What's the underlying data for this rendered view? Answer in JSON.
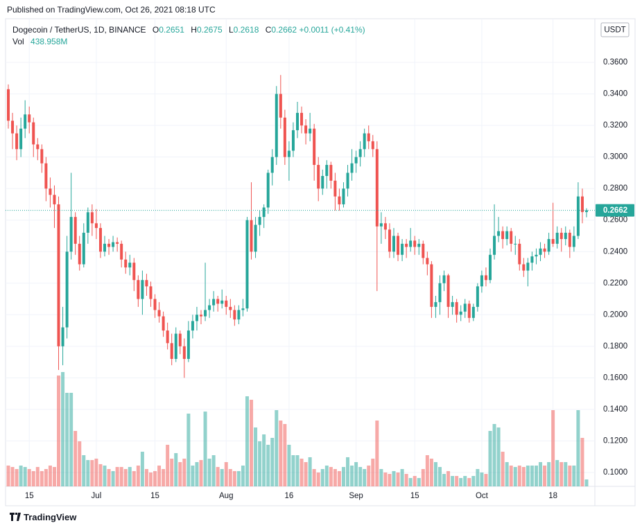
{
  "published": "Published on TradingView.com, Oct 26, 2021 08:18 UTC",
  "brand": "TradingView",
  "chart_data": {
    "type": "candlestick",
    "symbol": "Dogecoin / TetherUS, 1D, BINANCE",
    "legend_keys": [
      "O",
      "H",
      "L",
      "C"
    ],
    "change": {
      "value": 0.0011,
      "label": "+0.0011"
    },
    "change_pct": {
      "value": 0.41,
      "label": "(+0.41%)"
    },
    "volume_key": "Vol",
    "volume_legend": {
      "value": 438.958,
      "label": "438.958M"
    },
    "currency": "USDT",
    "up_color": "#26a69a",
    "down_color": "#ef5350",
    "grid": true,
    "ylim": [
      0.0912,
      0.3877
    ],
    "yticks": [
      {
        "value": 0.1,
        "label": "0.1000"
      },
      {
        "value": 0.12,
        "label": "0.1200"
      },
      {
        "value": 0.14,
        "label": "0.1400"
      },
      {
        "value": 0.16,
        "label": "0.1600"
      },
      {
        "value": 0.18,
        "label": "0.1800"
      },
      {
        "value": 0.2,
        "label": "0.2000"
      },
      {
        "value": 0.22,
        "label": "0.2200"
      },
      {
        "value": 0.24,
        "label": "0.2400"
      },
      {
        "value": 0.26,
        "label": "0.2600"
      },
      {
        "value": 0.28,
        "label": "0.2800"
      },
      {
        "value": 0.3,
        "label": "0.3000"
      },
      {
        "value": 0.32,
        "label": "0.3200"
      },
      {
        "value": 0.34,
        "label": "0.3400"
      },
      {
        "value": 0.36,
        "label": "0.3600"
      }
    ],
    "categories": [
      null,
      null,
      null,
      null,
      null,
      "15",
      null,
      null,
      null,
      null,
      null,
      null,
      null,
      null,
      null,
      null,
      null,
      null,
      null,
      null,
      null,
      "Jul",
      null,
      null,
      null,
      null,
      null,
      null,
      null,
      null,
      null,
      null,
      null,
      null,
      null,
      "15",
      null,
      null,
      null,
      null,
      null,
      null,
      null,
      null,
      null,
      null,
      null,
      null,
      null,
      null,
      null,
      null,
      "Aug",
      null,
      null,
      null,
      null,
      null,
      null,
      null,
      null,
      null,
      null,
      null,
      null,
      null,
      null,
      "16",
      null,
      null,
      null,
      null,
      null,
      null,
      null,
      null,
      null,
      null,
      null,
      null,
      null,
      null,
      null,
      "Sep",
      null,
      null,
      null,
      null,
      null,
      null,
      null,
      null,
      null,
      null,
      null,
      null,
      null,
      "15",
      null,
      null,
      null,
      null,
      null,
      null,
      null,
      null,
      null,
      null,
      null,
      null,
      null,
      null,
      null,
      "Oct",
      null,
      null,
      null,
      null,
      null,
      null,
      null,
      null,
      null,
      null,
      null,
      null,
      null,
      null,
      null,
      null,
      "18",
      null,
      null,
      null,
      null,
      null,
      null,
      null,
      null
    ],
    "candles": [
      [
        0.343,
        0.346,
        0.318,
        0.323
      ],
      [
        0.323,
        0.328,
        0.305,
        0.315
      ],
      [
        0.315,
        0.32,
        0.298,
        0.305
      ],
      [
        0.305,
        0.325,
        0.3,
        0.318
      ],
      [
        0.318,
        0.336,
        0.312,
        0.327
      ],
      [
        0.327,
        0.332,
        0.315,
        0.322
      ],
      [
        0.322,
        0.325,
        0.3,
        0.308
      ],
      [
        0.308,
        0.312,
        0.298,
        0.305
      ],
      [
        0.305,
        0.308,
        0.29,
        0.296
      ],
      [
        0.296,
        0.3,
        0.272,
        0.28
      ],
      [
        0.28,
        0.287,
        0.268,
        0.276
      ],
      [
        0.276,
        0.282,
        0.255,
        0.27
      ],
      [
        0.27,
        0.275,
        0.165,
        0.18
      ],
      [
        0.18,
        0.205,
        0.168,
        0.192
      ],
      [
        0.192,
        0.25,
        0.185,
        0.24
      ],
      [
        0.24,
        0.29,
        0.235,
        0.262
      ],
      [
        0.262,
        0.265,
        0.238,
        0.245
      ],
      [
        0.245,
        0.25,
        0.228,
        0.232
      ],
      [
        0.232,
        0.258,
        0.23,
        0.252
      ],
      [
        0.252,
        0.268,
        0.245,
        0.265
      ],
      [
        0.265,
        0.27,
        0.25,
        0.258
      ],
      [
        0.258,
        0.267,
        0.248,
        0.255
      ],
      [
        0.255,
        0.258,
        0.236,
        0.24
      ],
      [
        0.24,
        0.25,
        0.237,
        0.245
      ],
      [
        0.245,
        0.248,
        0.238,
        0.243
      ],
      [
        0.243,
        0.25,
        0.24,
        0.246
      ],
      [
        0.246,
        0.249,
        0.24,
        0.245
      ],
      [
        0.245,
        0.247,
        0.23,
        0.235
      ],
      [
        0.235,
        0.24,
        0.226,
        0.23
      ],
      [
        0.23,
        0.238,
        0.225,
        0.233
      ],
      [
        0.233,
        0.236,
        0.215,
        0.222
      ],
      [
        0.222,
        0.225,
        0.205,
        0.21
      ],
      [
        0.21,
        0.228,
        0.2,
        0.222
      ],
      [
        0.222,
        0.226,
        0.212,
        0.218
      ],
      [
        0.218,
        0.221,
        0.205,
        0.21
      ],
      [
        0.21,
        0.213,
        0.198,
        0.203
      ],
      [
        0.203,
        0.208,
        0.195,
        0.199
      ],
      [
        0.199,
        0.202,
        0.186,
        0.19
      ],
      [
        0.19,
        0.195,
        0.178,
        0.182
      ],
      [
        0.182,
        0.188,
        0.168,
        0.172
      ],
      [
        0.172,
        0.192,
        0.17,
        0.188
      ],
      [
        0.188,
        0.19,
        0.175,
        0.18
      ],
      [
        0.18,
        0.185,
        0.16,
        0.172
      ],
      [
        0.172,
        0.196,
        0.17,
        0.19
      ],
      [
        0.19,
        0.2,
        0.185,
        0.196
      ],
      [
        0.196,
        0.205,
        0.19,
        0.2
      ],
      [
        0.2,
        0.203,
        0.194,
        0.199
      ],
      [
        0.199,
        0.233,
        0.196,
        0.203
      ],
      [
        0.203,
        0.21,
        0.198,
        0.206
      ],
      [
        0.206,
        0.215,
        0.202,
        0.21
      ],
      [
        0.21,
        0.212,
        0.202,
        0.207
      ],
      [
        0.207,
        0.216,
        0.204,
        0.209
      ],
      [
        0.209,
        0.212,
        0.2,
        0.205
      ],
      [
        0.205,
        0.21,
        0.198,
        0.203
      ],
      [
        0.203,
        0.206,
        0.193,
        0.197
      ],
      [
        0.197,
        0.206,
        0.194,
        0.203
      ],
      [
        0.203,
        0.21,
        0.199,
        0.204
      ],
      [
        0.204,
        0.262,
        0.202,
        0.26
      ],
      [
        0.26,
        0.284,
        0.235,
        0.24
      ],
      [
        0.24,
        0.262,
        0.236,
        0.257
      ],
      [
        0.257,
        0.266,
        0.25,
        0.262
      ],
      [
        0.262,
        0.27,
        0.255,
        0.268
      ],
      [
        0.268,
        0.292,
        0.264,
        0.29
      ],
      [
        0.29,
        0.305,
        0.282,
        0.3
      ],
      [
        0.3,
        0.345,
        0.295,
        0.34
      ],
      [
        0.34,
        0.352,
        0.318,
        0.325
      ],
      [
        0.325,
        0.33,
        0.295,
        0.3
      ],
      [
        0.3,
        0.31,
        0.285,
        0.304
      ],
      [
        0.304,
        0.322,
        0.3,
        0.317
      ],
      [
        0.317,
        0.335,
        0.312,
        0.328
      ],
      [
        0.328,
        0.332,
        0.315,
        0.32
      ],
      [
        0.32,
        0.324,
        0.308,
        0.315
      ],
      [
        0.315,
        0.328,
        0.31,
        0.318
      ],
      [
        0.318,
        0.321,
        0.285,
        0.295
      ],
      [
        0.295,
        0.3,
        0.272,
        0.28
      ],
      [
        0.28,
        0.292,
        0.276,
        0.288
      ],
      [
        0.288,
        0.298,
        0.28,
        0.295
      ],
      [
        0.295,
        0.297,
        0.28,
        0.285
      ],
      [
        0.285,
        0.29,
        0.266,
        0.275
      ],
      [
        0.275,
        0.28,
        0.266,
        0.27
      ],
      [
        0.27,
        0.284,
        0.268,
        0.28
      ],
      [
        0.28,
        0.295,
        0.275,
        0.29
      ],
      [
        0.29,
        0.305,
        0.285,
        0.296
      ],
      [
        0.296,
        0.304,
        0.29,
        0.3
      ],
      [
        0.3,
        0.31,
        0.294,
        0.305
      ],
      [
        0.305,
        0.318,
        0.3,
        0.315
      ],
      [
        0.315,
        0.32,
        0.305,
        0.31
      ],
      [
        0.31,
        0.314,
        0.3,
        0.305
      ],
      [
        0.305,
        0.31,
        0.215,
        0.256
      ],
      [
        0.256,
        0.265,
        0.245,
        0.258
      ],
      [
        0.258,
        0.262,
        0.248,
        0.254
      ],
      [
        0.254,
        0.258,
        0.236,
        0.24
      ],
      [
        0.24,
        0.255,
        0.236,
        0.25
      ],
      [
        0.25,
        0.252,
        0.234,
        0.238
      ],
      [
        0.238,
        0.248,
        0.234,
        0.245
      ],
      [
        0.245,
        0.248,
        0.236,
        0.243
      ],
      [
        0.243,
        0.255,
        0.24,
        0.247
      ],
      [
        0.247,
        0.25,
        0.238,
        0.243
      ],
      [
        0.243,
        0.248,
        0.238,
        0.245
      ],
      [
        0.245,
        0.247,
        0.232,
        0.236
      ],
      [
        0.236,
        0.24,
        0.225,
        0.232
      ],
      [
        0.232,
        0.234,
        0.198,
        0.205
      ],
      [
        0.205,
        0.212,
        0.198,
        0.208
      ],
      [
        0.208,
        0.225,
        0.2,
        0.22
      ],
      [
        0.22,
        0.228,
        0.215,
        0.225
      ],
      [
        0.225,
        0.226,
        0.198,
        0.205
      ],
      [
        0.205,
        0.212,
        0.2,
        0.208
      ],
      [
        0.208,
        0.21,
        0.195,
        0.2
      ],
      [
        0.2,
        0.206,
        0.196,
        0.202
      ],
      [
        0.202,
        0.21,
        0.198,
        0.207
      ],
      [
        0.207,
        0.209,
        0.195,
        0.198
      ],
      [
        0.198,
        0.207,
        0.196,
        0.205
      ],
      [
        0.205,
        0.22,
        0.202,
        0.218
      ],
      [
        0.218,
        0.228,
        0.214,
        0.225
      ],
      [
        0.225,
        0.23,
        0.218,
        0.222
      ],
      [
        0.222,
        0.242,
        0.22,
        0.238
      ],
      [
        0.238,
        0.27,
        0.235,
        0.25
      ],
      [
        0.25,
        0.262,
        0.246,
        0.253
      ],
      [
        0.253,
        0.256,
        0.242,
        0.248
      ],
      [
        0.248,
        0.256,
        0.244,
        0.253
      ],
      [
        0.253,
        0.255,
        0.24,
        0.245
      ],
      [
        0.245,
        0.25,
        0.238,
        0.245
      ],
      [
        0.245,
        0.248,
        0.228,
        0.232
      ],
      [
        0.232,
        0.236,
        0.224,
        0.228
      ],
      [
        0.228,
        0.236,
        0.218,
        0.233
      ],
      [
        0.233,
        0.24,
        0.228,
        0.237
      ],
      [
        0.237,
        0.242,
        0.232,
        0.238
      ],
      [
        0.238,
        0.246,
        0.234,
        0.242
      ],
      [
        0.242,
        0.245,
        0.236,
        0.24
      ],
      [
        0.24,
        0.252,
        0.238,
        0.248
      ],
      [
        0.248,
        0.271,
        0.243,
        0.245
      ],
      [
        0.245,
        0.256,
        0.242,
        0.252
      ],
      [
        0.252,
        0.255,
        0.24,
        0.248
      ],
      [
        0.248,
        0.256,
        0.244,
        0.252
      ],
      [
        0.252,
        0.254,
        0.236,
        0.243
      ],
      [
        0.243,
        0.256,
        0.24,
        0.25
      ],
      [
        0.25,
        0.284,
        0.248,
        0.275
      ],
      [
        0.275,
        0.28,
        0.258,
        0.2651
      ],
      [
        0.2651,
        0.2675,
        0.2618,
        0.2662
      ]
    ],
    "volume": [
      1320,
      1230,
      1100,
      1320,
      1230,
      1100,
      970,
      1230,
      970,
      1100,
      1320,
      1230,
      7040,
      7260,
      5940,
      5940,
      3520,
      2860,
      1980,
      1670,
      1670,
      1760,
      1410,
      1320,
      1100,
      970,
      1230,
      1230,
      1100,
      1230,
      970,
      1320,
      2200,
      1100,
      880,
      970,
      1320,
      1100,
      2640,
      1760,
      2110,
      1540,
      1760,
      4620,
      1320,
      1540,
      1670,
      4750,
      1760,
      1980,
      1230,
      1100,
      1540,
      1100,
      970,
      970,
      1320,
      5720,
      5500,
      3740,
      2860,
      3300,
      2640,
      3080,
      4840,
      4180,
      3960,
      2640,
      1980,
      1980,
      1760,
      1540,
      1850,
      1100,
      880,
      1100,
      1320,
      1230,
      1100,
      970,
      1230,
      1850,
      1320,
      1540,
      1230,
      1100,
      1320,
      1760,
      4180,
      1100,
      880,
      790,
      970,
      880,
      1100,
      790,
      530,
      660,
      530,
      1100,
      1980,
      1760,
      1540,
      1230,
      790,
      970,
      660,
      660,
      530,
      660,
      530,
      660,
      1100,
      880,
      790,
      3520,
      3960,
      3740,
      2200,
      1540,
      1320,
      1230,
      1320,
      1230,
      1320,
      1320,
      1320,
      1540,
      1320,
      1540,
      4840,
      1670,
      1540,
      1540,
      1320,
      1320,
      4840,
      3080,
      438.958
    ]
  }
}
